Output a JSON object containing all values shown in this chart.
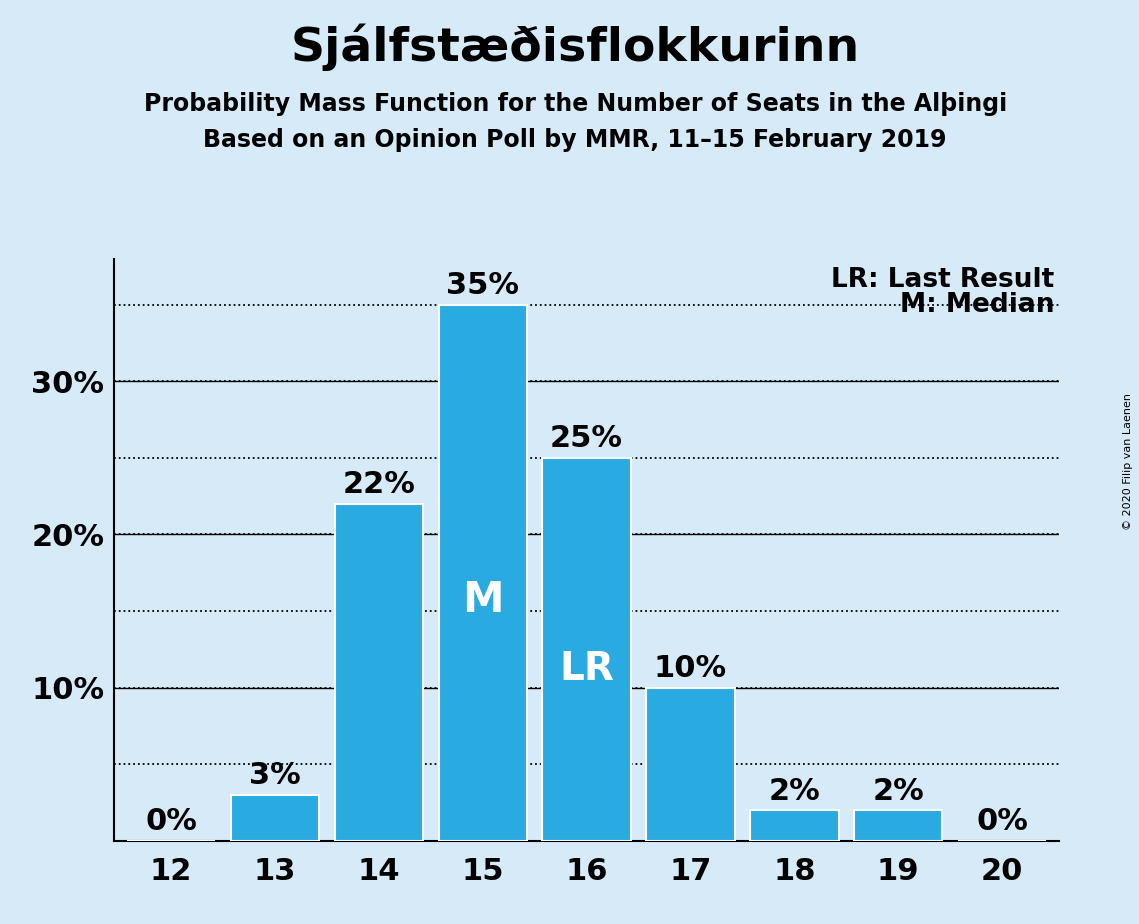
{
  "title": "Sjálfstæðisflokkurinn",
  "subtitle1": "Probability Mass Function for the Number of Seats in the Alþingi",
  "subtitle2": "Based on an Opinion Poll by MMR, 11–15 February 2019",
  "copyright": "© 2020 Filip van Laenen",
  "categories": [
    12,
    13,
    14,
    15,
    16,
    17,
    18,
    19,
    20
  ],
  "values": [
    0,
    3,
    22,
    35,
    25,
    10,
    2,
    2,
    0
  ],
  "bar_color": "#29ABE2",
  "background_color": "#D6EAF8",
  "median_seat": 15,
  "last_result_seat": 16,
  "median_label": "M",
  "last_result_label": "LR",
  "legend_lr": "LR: Last Result",
  "legend_m": "M: Median",
  "ylim": [
    0,
    38
  ],
  "ytick_vals": [
    10,
    20,
    30
  ],
  "ytick_labels": [
    "10%",
    "20%",
    "30%"
  ],
  "grid_dotted": [
    5,
    10,
    15,
    20,
    25,
    30,
    35
  ],
  "grid_solid": [
    10,
    20,
    30
  ],
  "title_fontsize": 34,
  "subtitle_fontsize": 17,
  "tick_fontsize": 22,
  "bar_label_fontsize": 22,
  "inner_label_fontsize": 28,
  "legend_fontsize": 19
}
